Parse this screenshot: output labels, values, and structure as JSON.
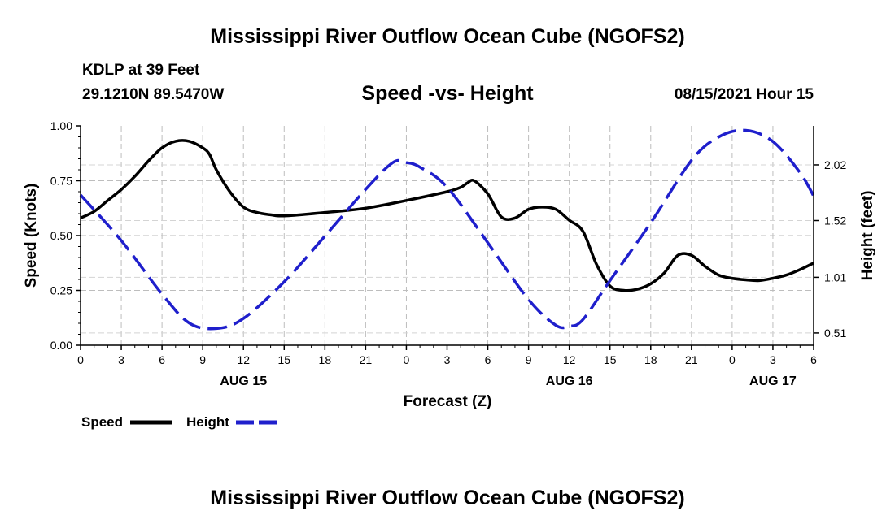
{
  "page": {
    "title_top": "Mississippi River Outflow Ocean Cube (NGOFS2)",
    "title_bottom": "Mississippi River Outflow Ocean Cube (NGOFS2)",
    "station_line": "KDLP at 39 Feet",
    "coords_line": "29.1210N  89.5470W",
    "chart_title": "Speed -vs- Height",
    "datetime": "08/15/2021 Hour 15"
  },
  "chart_data": {
    "type": "line",
    "title": "Speed -vs- Height",
    "xlabel": "Forecast (Z)",
    "ylabel": "Speed (Knots)",
    "y2label": "Height (feet)",
    "x_range": [
      0,
      54
    ],
    "x_tick_values": [
      0,
      3,
      6,
      9,
      12,
      15,
      18,
      21,
      24,
      27,
      30,
      33,
      36,
      39,
      42,
      45,
      48,
      51,
      54
    ],
    "x_tick_labels": [
      "0",
      "3",
      "6",
      "9",
      "12",
      "15",
      "18",
      "21",
      "0",
      "3",
      "6",
      "9",
      "12",
      "15",
      "18",
      "21",
      "0",
      "3",
      "6"
    ],
    "date_labels": [
      {
        "x": 12,
        "label": "AUG 15"
      },
      {
        "x": 36,
        "label": "AUG 16"
      },
      {
        "x": 51,
        "label": "AUG 17"
      }
    ],
    "ylim": [
      0,
      1
    ],
    "y_ticks": [
      0,
      0.25,
      0.5,
      0.75,
      1.0
    ],
    "y_tick_labels": [
      "0.00",
      "0.25",
      "0.50",
      "0.75",
      "1.00"
    ],
    "y2lim": [
      0.4,
      2.37
    ],
    "y2_ticks": [
      0.51,
      1.01,
      1.52,
      2.02
    ],
    "y2_tick_labels": [
      "0.51",
      "1.01",
      "1.52",
      "2.02"
    ],
    "grid": true,
    "legend_position": "bottom-left",
    "series": [
      {
        "name": "Speed",
        "axis": "left",
        "color": "#000000",
        "dash": "solid",
        "x": [
          0,
          1,
          2,
          3,
          4,
          5,
          6,
          7,
          8,
          9,
          9.5,
          10,
          11,
          12,
          13,
          14,
          15,
          18,
          21,
          24,
          27,
          28,
          28.5,
          29,
          30,
          31,
          32,
          33,
          34,
          35,
          36,
          37,
          38,
          39,
          40,
          41,
          42,
          43,
          44,
          45,
          46,
          47,
          48,
          49,
          50,
          51,
          52,
          53,
          54
        ],
        "y": [
          0.58,
          0.61,
          0.66,
          0.71,
          0.77,
          0.84,
          0.9,
          0.93,
          0.93,
          0.9,
          0.87,
          0.8,
          0.7,
          0.63,
          0.605,
          0.595,
          0.59,
          0.605,
          0.625,
          0.66,
          0.7,
          0.72,
          0.74,
          0.75,
          0.69,
          0.585,
          0.58,
          0.62,
          0.63,
          0.62,
          0.57,
          0.52,
          0.37,
          0.27,
          0.25,
          0.255,
          0.28,
          0.33,
          0.41,
          0.41,
          0.36,
          0.32,
          0.305,
          0.298,
          0.295,
          0.305,
          0.32,
          0.345,
          0.375
        ]
      },
      {
        "name": "Height",
        "axis": "right",
        "color": "#1f1fcc",
        "dash": "dashed",
        "x": [
          0,
          3,
          6,
          8,
          10,
          12,
          15,
          18,
          21,
          23,
          24,
          25,
          27,
          30,
          33,
          35,
          36,
          37,
          39,
          42,
          45,
          47,
          49,
          51,
          53,
          54
        ],
        "y": [
          1.75,
          1.34,
          0.86,
          0.6,
          0.55,
          0.64,
          0.97,
          1.38,
          1.8,
          2.04,
          2.04,
          2.0,
          1.82,
          1.32,
          0.81,
          0.58,
          0.57,
          0.63,
          0.98,
          1.5,
          2.06,
          2.27,
          2.33,
          2.23,
          1.95,
          1.74
        ]
      }
    ]
  }
}
